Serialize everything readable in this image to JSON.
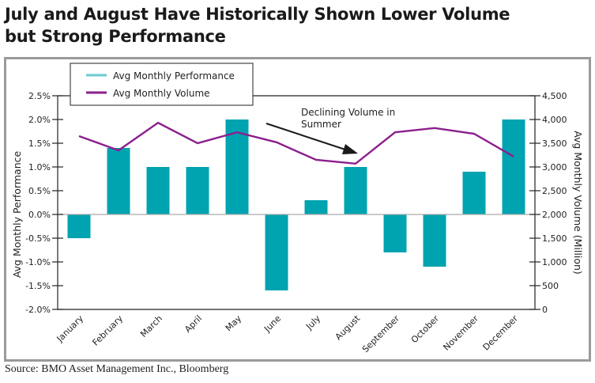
{
  "title": {
    "line1": "July and August Have Historically Shown Lower Volume",
    "line2": "but Strong Performance"
  },
  "source": "Source: BMO Asset Management Inc., Bloomberg",
  "colors": {
    "performance": "#00a3b0",
    "performance_legend": "#6ccad0",
    "volume": "#8b1f8d",
    "axis": "#222222",
    "zero_line": "#aaaaaa",
    "frame": "#9a9a9b"
  },
  "chart_data": {
    "type": "bar",
    "title": "July and August Have Historically Shown Lower Volume but Strong Performance",
    "categories": [
      "January",
      "February",
      "March",
      "April",
      "May",
      "June",
      "July",
      "August",
      "September",
      "October",
      "November",
      "December"
    ],
    "series": [
      {
        "name": "Avg Monthly Performance",
        "type": "bar",
        "axis": "left",
        "unit": "%",
        "values": [
          -0.5,
          1.4,
          1.0,
          1.0,
          2.0,
          -1.6,
          0.3,
          1.0,
          -0.8,
          -1.1,
          0.9,
          2.0
        ]
      },
      {
        "name": "Avg Monthly Volume",
        "type": "line",
        "axis": "right",
        "unit": "Million",
        "values": [
          3650,
          3350,
          3930,
          3500,
          3730,
          3520,
          3150,
          3070,
          3730,
          3820,
          3700,
          3220
        ]
      }
    ],
    "ylabel": "Avg Monthly Performance",
    "ylabel_right": "Avg Monthly Volume (Million)",
    "xlabel": "",
    "ylim": [
      -2.0,
      2.5
    ],
    "ylim_right": [
      0,
      4500
    ],
    "yticks": [
      "-2.0%",
      "-1.5%",
      "-1.0%",
      "-0.5%",
      "0.0%",
      "0.5%",
      "1.0%",
      "1.5%",
      "2.0%",
      "2.5%"
    ],
    "yticks_values": [
      -2.0,
      -1.5,
      -1.0,
      -0.5,
      0.0,
      0.5,
      1.0,
      1.5,
      2.0,
      2.5
    ],
    "yticks_right": [
      "0",
      "500",
      "1,000",
      "1,500",
      "2,000",
      "2,500",
      "3,000",
      "3,500",
      "4,000",
      "4,500"
    ],
    "yticks_right_values": [
      0,
      500,
      1000,
      1500,
      2000,
      2500,
      3000,
      3500,
      4000,
      4500
    ],
    "legend": {
      "placement": "top-left",
      "entries": [
        "Avg Monthly Performance",
        "Avg Monthly Volume"
      ]
    },
    "annotation": {
      "text_line1": "Declining Volume in",
      "text_line2": "Summer",
      "points_to": "August"
    },
    "grid": false
  }
}
